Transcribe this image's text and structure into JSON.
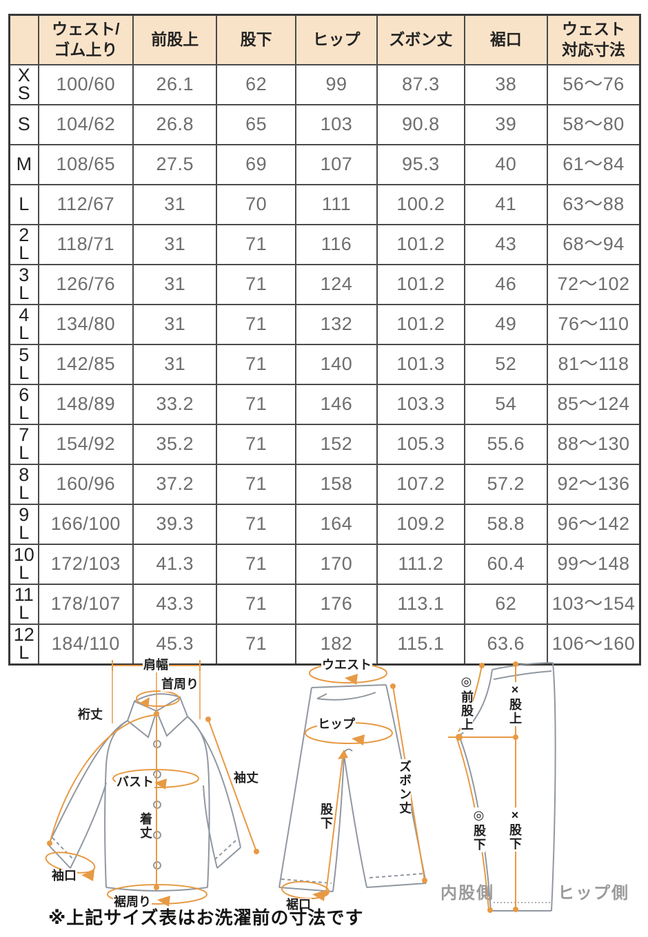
{
  "table": {
    "columns": [
      "",
      "ウェスト/\nゴム上り",
      "前股上",
      "股下",
      "ヒップ",
      "ズボン丈",
      "裾口",
      "ウェスト\n対応寸法"
    ],
    "rows": [
      {
        "size": "X\nS",
        "values": [
          "100/60",
          "26.1",
          "62",
          "99",
          "87.3",
          "38",
          "56～76"
        ]
      },
      {
        "size": "S",
        "values": [
          "104/62",
          "26.8",
          "65",
          "103",
          "90.8",
          "39",
          "58～80"
        ]
      },
      {
        "size": "M",
        "values": [
          "108/65",
          "27.5",
          "69",
          "107",
          "95.3",
          "40",
          "61～84"
        ]
      },
      {
        "size": "L",
        "values": [
          "112/67",
          "31",
          "70",
          "111",
          "100.2",
          "41",
          "63～88"
        ]
      },
      {
        "size": "2\nL",
        "values": [
          "118/71",
          "31",
          "71",
          "116",
          "101.2",
          "43",
          "68～94"
        ]
      },
      {
        "size": "3\nL",
        "values": [
          "126/76",
          "31",
          "71",
          "124",
          "101.2",
          "46",
          "72～102"
        ]
      },
      {
        "size": "4\nL",
        "values": [
          "134/80",
          "31",
          "71",
          "132",
          "101.2",
          "49",
          "76～110"
        ]
      },
      {
        "size": "5\nL",
        "values": [
          "142/85",
          "31",
          "71",
          "140",
          "101.3",
          "52",
          "81～118"
        ]
      },
      {
        "size": "6\nL",
        "values": [
          "148/89",
          "33.2",
          "71",
          "146",
          "103.3",
          "54",
          "85～124"
        ]
      },
      {
        "size": "7\nL",
        "values": [
          "154/92",
          "35.2",
          "71",
          "152",
          "105.3",
          "55.6",
          "88～130"
        ]
      },
      {
        "size": "8\nL",
        "values": [
          "160/96",
          "37.2",
          "71",
          "158",
          "107.2",
          "57.2",
          "92～136"
        ]
      },
      {
        "size": "9\nL",
        "values": [
          "166/100",
          "39.3",
          "71",
          "164",
          "109.2",
          "58.8",
          "96～142"
        ]
      },
      {
        "size": "10\nL",
        "values": [
          "172/103",
          "41.3",
          "71",
          "170",
          "111.2",
          "60.4",
          "99～148"
        ]
      },
      {
        "size": "11\nL",
        "values": [
          "178/107",
          "43.3",
          "71",
          "176",
          "113.1",
          "62",
          "103～154"
        ]
      },
      {
        "size": "12\nL",
        "values": [
          "184/110",
          "45.3",
          "71",
          "182",
          "115.1",
          "63.6",
          "106～160"
        ]
      }
    ]
  },
  "diagrams": {
    "shirt": {
      "shoulder_width": "肩幅",
      "neck": "首周り",
      "yuki_length": "裄丈",
      "bust": "バスト",
      "sleeve_length": "袖丈",
      "body_length": "着丈",
      "cuff": "袖口",
      "hem_round": "裾周り"
    },
    "pants": {
      "waist": "ウエスト",
      "hip": "ヒップ",
      "pants_length": "ズボン丈",
      "inseam": "股下",
      "hem": "裾口"
    },
    "leg": {
      "front_rise": "◎前股上",
      "rise": "×股上",
      "inseam_curved": "◎股下",
      "inseam_straight": "×股下",
      "inner_side": "内股側",
      "hip_side": "ヒップ側"
    }
  },
  "note": "※上記サイズ表はお洗濯前の寸法です",
  "colors": {
    "header_bg": "#f9e3c8",
    "table_border": "#4a4a4a",
    "data_text": "#6e6e6e",
    "accent_orange": "#e79a44",
    "outline_gray": "#9097a0",
    "side_label_gray": "#9b9b9b"
  }
}
